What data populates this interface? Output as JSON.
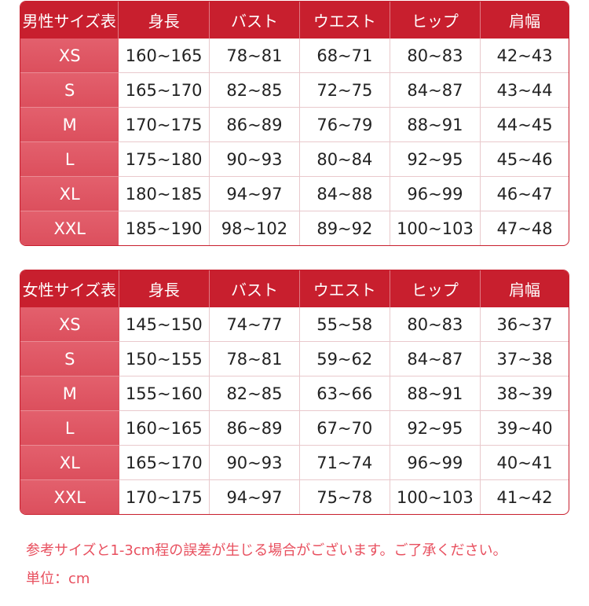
{
  "colors": {
    "header": "#c81f2e",
    "size_column": "#e05866",
    "note": "#e8505f"
  },
  "tables": [
    {
      "title": "男性サイズ表",
      "headers": [
        "身長",
        "バスト",
        "ウエスト",
        "ヒップ",
        "肩幅"
      ],
      "rows": [
        [
          "XS",
          "160~165",
          "78~81",
          "68~71",
          "80~83",
          "42~43"
        ],
        [
          "S",
          "165~170",
          "82~85",
          "72~75",
          "84~87",
          "43~44"
        ],
        [
          "M",
          "170~175",
          "86~89",
          "76~79",
          "88~91",
          "44~45"
        ],
        [
          "L",
          "175~180",
          "90~93",
          "80~84",
          "92~95",
          "45~46"
        ],
        [
          "XL",
          "180~185",
          "94~97",
          "84~88",
          "96~99",
          "46~47"
        ],
        [
          "XXL",
          "185~190",
          "98~102",
          "89~92",
          "100~103",
          "47~48"
        ]
      ]
    },
    {
      "title": "女性サイズ表",
      "headers": [
        "身長",
        "バスト",
        "ウエスト",
        "ヒップ",
        "肩幅"
      ],
      "rows": [
        [
          "XS",
          "145~150",
          "74~77",
          "55~58",
          "80~83",
          "36~37"
        ],
        [
          "S",
          "150~155",
          "78~81",
          "59~62",
          "84~87",
          "37~38"
        ],
        [
          "M",
          "155~160",
          "82~85",
          "63~66",
          "88~91",
          "38~39"
        ],
        [
          "L",
          "160~165",
          "86~89",
          "67~70",
          "92~95",
          "39~40"
        ],
        [
          "XL",
          "165~170",
          "90~93",
          "71~74",
          "96~99",
          "40~41"
        ],
        [
          "XXL",
          "170~175",
          "94~97",
          "75~78",
          "100~103",
          "41~42"
        ]
      ]
    }
  ],
  "notes": {
    "tolerance": "参考サイズと1-3cm程の誤差が生じる場合がございます。ご了承ください。",
    "unit": "単位：cm"
  }
}
